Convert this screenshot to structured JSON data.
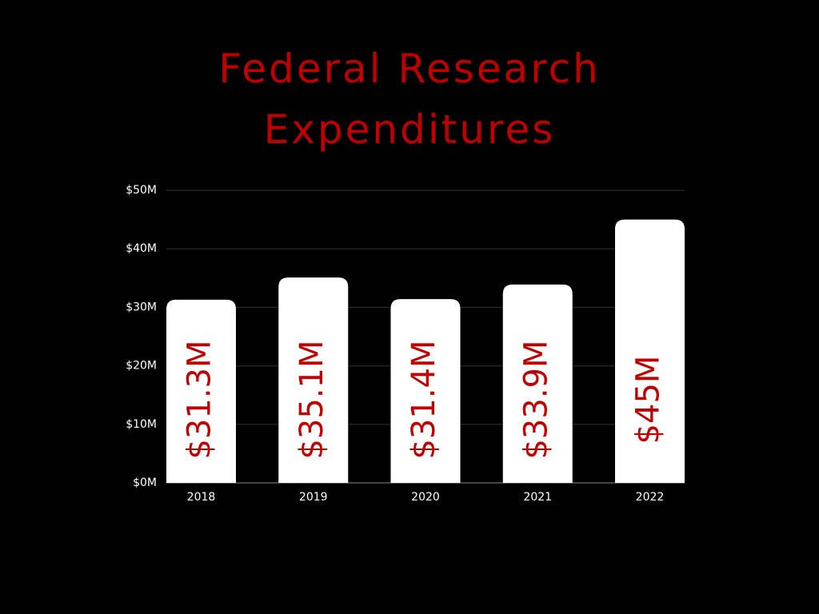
{
  "chart_data": {
    "type": "bar",
    "title": "Federal Research Expenditures",
    "categories": [
      "2018",
      "2019",
      "2020",
      "2021",
      "2022"
    ],
    "values": [
      31.3,
      35.1,
      31.4,
      33.9,
      45
    ],
    "value_labels": [
      "$31.3M",
      "$35.1M",
      "$31.4M",
      "$33.9M",
      "$45M"
    ],
    "color": "#ffffff",
    "label_color": "#c00000",
    "ylim": [
      0,
      50
    ],
    "yticks": [
      {
        "value": 0,
        "label": "$0M"
      },
      {
        "value": 10,
        "label": "$10M"
      },
      {
        "value": 20,
        "label": "$20M"
      },
      {
        "value": 30,
        "label": "$30M"
      },
      {
        "value": 40,
        "label": "$40M"
      },
      {
        "value": 50,
        "label": "$50M"
      }
    ],
    "grid": true
  }
}
